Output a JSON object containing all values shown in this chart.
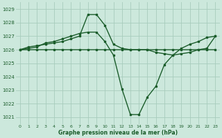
{
  "bg_color": "#cce8dc",
  "grid_color": "#a8ccbc",
  "line_color": "#1a5c2a",
  "line_width": 1.0,
  "marker": "s",
  "marker_size": 2.0,
  "xlim": [
    -0.5,
    23.5
  ],
  "ylim": [
    1020.5,
    1029.5
  ],
  "yticks": [
    1021,
    1022,
    1023,
    1024,
    1025,
    1026,
    1027,
    1028,
    1029
  ],
  "xticks": [
    0,
    1,
    2,
    3,
    4,
    5,
    6,
    7,
    8,
    9,
    10,
    11,
    12,
    13,
    14,
    15,
    16,
    17,
    18,
    19,
    20,
    21,
    22,
    23
  ],
  "xlabel": "Graphe pression niveau de la mer (hPa)",
  "series": [
    [
      1026.0,
      1026.2,
      1026.3,
      1026.4,
      1026.5,
      1026.6,
      1026.8,
      1027.0,
      1028.6,
      1028.6,
      1027.8,
      1026.4,
      1026.1,
      1026.0,
      1026.0,
      1026.0,
      1026.0,
      1026.0,
      1026.0,
      1026.0,
      1026.0,
      1026.0,
      1026.0,
      1026.0
    ],
    [
      1026.0,
      1026.1,
      1026.2,
      1026.5,
      1026.6,
      1026.8,
      1027.0,
      1027.2,
      1027.3,
      1027.3,
      1026.6,
      1025.6,
      1023.1,
      1021.2,
      1021.2,
      1022.5,
      1023.3,
      1024.9,
      1025.6,
      1026.1,
      1026.4,
      1026.6,
      1026.9,
      1027.0
    ],
    [
      1026.0,
      1026.0,
      1026.0,
      1026.0,
      1026.0,
      1026.0,
      1026.0,
      1026.0,
      1026.0,
      1026.0,
      1026.0,
      1026.0,
      1026.0,
      1026.0,
      1026.0,
      1026.0,
      1025.8,
      1025.7,
      1025.6,
      1025.7,
      1025.8,
      1026.0,
      1026.1,
      1027.0
    ]
  ]
}
